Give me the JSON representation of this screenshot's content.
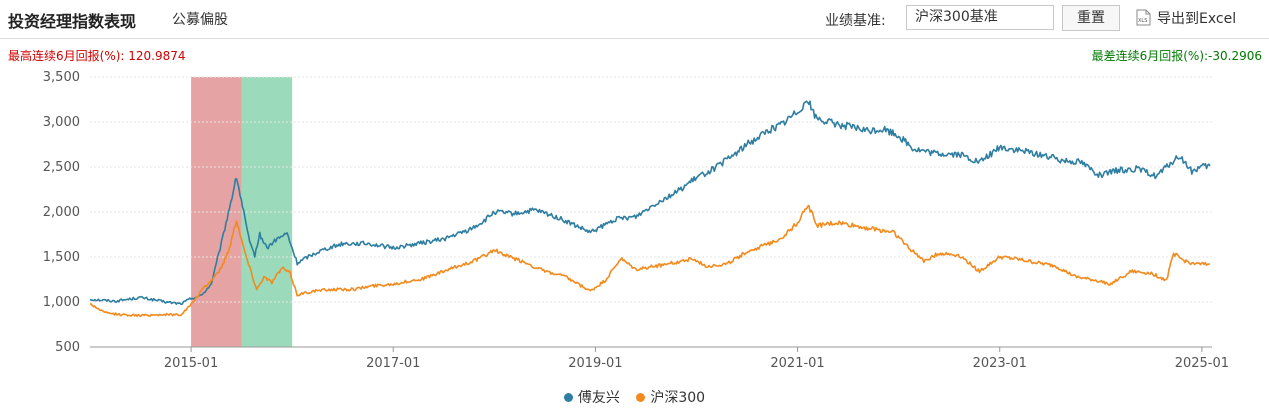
{
  "header": {
    "title": "投资经理指数表现",
    "subtitle": "公募偏股",
    "benchmark_label": "业绩基准:",
    "benchmark_value": "沪深300基准",
    "reset_label": "重置",
    "export_label": "导出到Excel",
    "export_icon": "xls-file-icon"
  },
  "stats": {
    "max_6m_label": "最高连续6月回报(%):",
    "max_6m_value": "120.9874",
    "min_6m_label": "最差连续6月回报(%):",
    "min_6m_value": "-30.2906"
  },
  "colors": {
    "series1": "#2e7ea1",
    "series2": "#f38a1d",
    "max_band": "#d97777",
    "min_band": "#6cc99a",
    "max_text": "#d00000",
    "min_text": "#007a00"
  },
  "chart_data": {
    "type": "line",
    "ylim": [
      500,
      3500
    ],
    "yticks": [
      500,
      1000,
      1500,
      2000,
      2500,
      3000,
      3500
    ],
    "ytick_labels": [
      "500",
      "1,000",
      "1,500",
      "2,000",
      "2,500",
      "3,000",
      "3,500"
    ],
    "xlim": [
      2014.0,
      2025.1
    ],
    "xticks": [
      2015.0,
      2017.0,
      2019.0,
      2021.0,
      2023.0,
      2025.0
    ],
    "xtick_labels": [
      "2015-01",
      "2017-01",
      "2019-01",
      "2021-01",
      "2023-01",
      "2025-01"
    ],
    "grid": true,
    "legend_position": "bottom",
    "highlight_bands": [
      {
        "name": "最高连续6月回报区间",
        "start": 2015.0,
        "end": 2015.5,
        "color_key": "max_band"
      },
      {
        "name": "最差连续6月回报区间",
        "start": 2015.5,
        "end": 2016.0,
        "color_key": "min_band"
      }
    ],
    "series": [
      {
        "name": "傅友兴",
        "color_key": "series1",
        "points": [
          [
            2014.0,
            1030
          ],
          [
            2014.25,
            1010
          ],
          [
            2014.5,
            1050
          ],
          [
            2014.75,
            1000
          ],
          [
            2014.9,
            980
          ],
          [
            2015.0,
            1040
          ],
          [
            2015.1,
            1070
          ],
          [
            2015.2,
            1200
          ],
          [
            2015.3,
            1650
          ],
          [
            2015.38,
            2050
          ],
          [
            2015.45,
            2390
          ],
          [
            2015.52,
            2000
          ],
          [
            2015.58,
            1650
          ],
          [
            2015.63,
            1520
          ],
          [
            2015.68,
            1750
          ],
          [
            2015.75,
            1600
          ],
          [
            2015.85,
            1700
          ],
          [
            2015.95,
            1760
          ],
          [
            2016.05,
            1430
          ],
          [
            2016.15,
            1500
          ],
          [
            2016.3,
            1580
          ],
          [
            2016.5,
            1650
          ],
          [
            2016.75,
            1650
          ],
          [
            2017.0,
            1600
          ],
          [
            2017.25,
            1650
          ],
          [
            2017.5,
            1700
          ],
          [
            2017.75,
            1800
          ],
          [
            2017.9,
            1900
          ],
          [
            2018.0,
            2000
          ],
          [
            2018.2,
            1980
          ],
          [
            2018.4,
            2020
          ],
          [
            2018.6,
            1950
          ],
          [
            2018.8,
            1850
          ],
          [
            2018.95,
            1770
          ],
          [
            2019.2,
            1920
          ],
          [
            2019.4,
            1950
          ],
          [
            2019.6,
            2100
          ],
          [
            2019.8,
            2220
          ],
          [
            2020.0,
            2380
          ],
          [
            2020.2,
            2500
          ],
          [
            2020.35,
            2620
          ],
          [
            2020.5,
            2750
          ],
          [
            2020.7,
            2900
          ],
          [
            2020.85,
            2980
          ],
          [
            2021.0,
            3120
          ],
          [
            2021.1,
            3250
          ],
          [
            2021.18,
            3050
          ],
          [
            2021.3,
            3000
          ],
          [
            2021.5,
            2950
          ],
          [
            2021.7,
            2900
          ],
          [
            2021.85,
            2920
          ],
          [
            2022.0,
            2850
          ],
          [
            2022.15,
            2700
          ],
          [
            2022.35,
            2650
          ],
          [
            2022.6,
            2640
          ],
          [
            2022.8,
            2550
          ],
          [
            2023.0,
            2720
          ],
          [
            2023.2,
            2680
          ],
          [
            2023.4,
            2640
          ],
          [
            2023.6,
            2580
          ],
          [
            2023.8,
            2560
          ],
          [
            2024.0,
            2400
          ],
          [
            2024.15,
            2460
          ],
          [
            2024.35,
            2480
          ],
          [
            2024.55,
            2400
          ],
          [
            2024.7,
            2550
          ],
          [
            2024.78,
            2620
          ],
          [
            2024.9,
            2450
          ],
          [
            2025.0,
            2500
          ],
          [
            2025.08,
            2510
          ]
        ]
      },
      {
        "name": "沪深300",
        "color_key": "series2",
        "points": [
          [
            2014.0,
            980
          ],
          [
            2014.15,
            880
          ],
          [
            2014.3,
            860
          ],
          [
            2014.5,
            850
          ],
          [
            2014.7,
            860
          ],
          [
            2014.9,
            860
          ],
          [
            2015.0,
            970
          ],
          [
            2015.1,
            1120
          ],
          [
            2015.2,
            1240
          ],
          [
            2015.3,
            1380
          ],
          [
            2015.38,
            1600
          ],
          [
            2015.45,
            1920
          ],
          [
            2015.52,
            1600
          ],
          [
            2015.58,
            1380
          ],
          [
            2015.65,
            1140
          ],
          [
            2015.72,
            1280
          ],
          [
            2015.8,
            1220
          ],
          [
            2015.9,
            1380
          ],
          [
            2015.98,
            1320
          ],
          [
            2016.05,
            1080
          ],
          [
            2016.2,
            1120
          ],
          [
            2016.4,
            1140
          ],
          [
            2016.6,
            1140
          ],
          [
            2016.8,
            1180
          ],
          [
            2017.0,
            1200
          ],
          [
            2017.3,
            1260
          ],
          [
            2017.6,
            1380
          ],
          [
            2017.85,
            1480
          ],
          [
            2018.0,
            1580
          ],
          [
            2018.1,
            1520
          ],
          [
            2018.3,
            1440
          ],
          [
            2018.5,
            1340
          ],
          [
            2018.7,
            1280
          ],
          [
            2018.95,
            1120
          ],
          [
            2019.1,
            1240
          ],
          [
            2019.25,
            1480
          ],
          [
            2019.4,
            1360
          ],
          [
            2019.6,
            1400
          ],
          [
            2019.8,
            1440
          ],
          [
            2019.95,
            1480
          ],
          [
            2020.1,
            1400
          ],
          [
            2020.3,
            1420
          ],
          [
            2020.5,
            1560
          ],
          [
            2020.7,
            1640
          ],
          [
            2020.85,
            1720
          ],
          [
            2021.0,
            1880
          ],
          [
            2021.1,
            2080
          ],
          [
            2021.2,
            1850
          ],
          [
            2021.4,
            1880
          ],
          [
            2021.6,
            1840
          ],
          [
            2021.8,
            1800
          ],
          [
            2021.95,
            1780
          ],
          [
            2022.1,
            1600
          ],
          [
            2022.25,
            1460
          ],
          [
            2022.4,
            1540
          ],
          [
            2022.6,
            1520
          ],
          [
            2022.8,
            1340
          ],
          [
            2023.0,
            1500
          ],
          [
            2023.15,
            1480
          ],
          [
            2023.35,
            1440
          ],
          [
            2023.55,
            1400
          ],
          [
            2023.75,
            1280
          ],
          [
            2023.95,
            1240
          ],
          [
            2024.1,
            1200
          ],
          [
            2024.3,
            1340
          ],
          [
            2024.5,
            1320
          ],
          [
            2024.65,
            1240
          ],
          [
            2024.72,
            1540
          ],
          [
            2024.82,
            1460
          ],
          [
            2024.95,
            1420
          ],
          [
            2025.08,
            1420
          ]
        ]
      }
    ]
  }
}
